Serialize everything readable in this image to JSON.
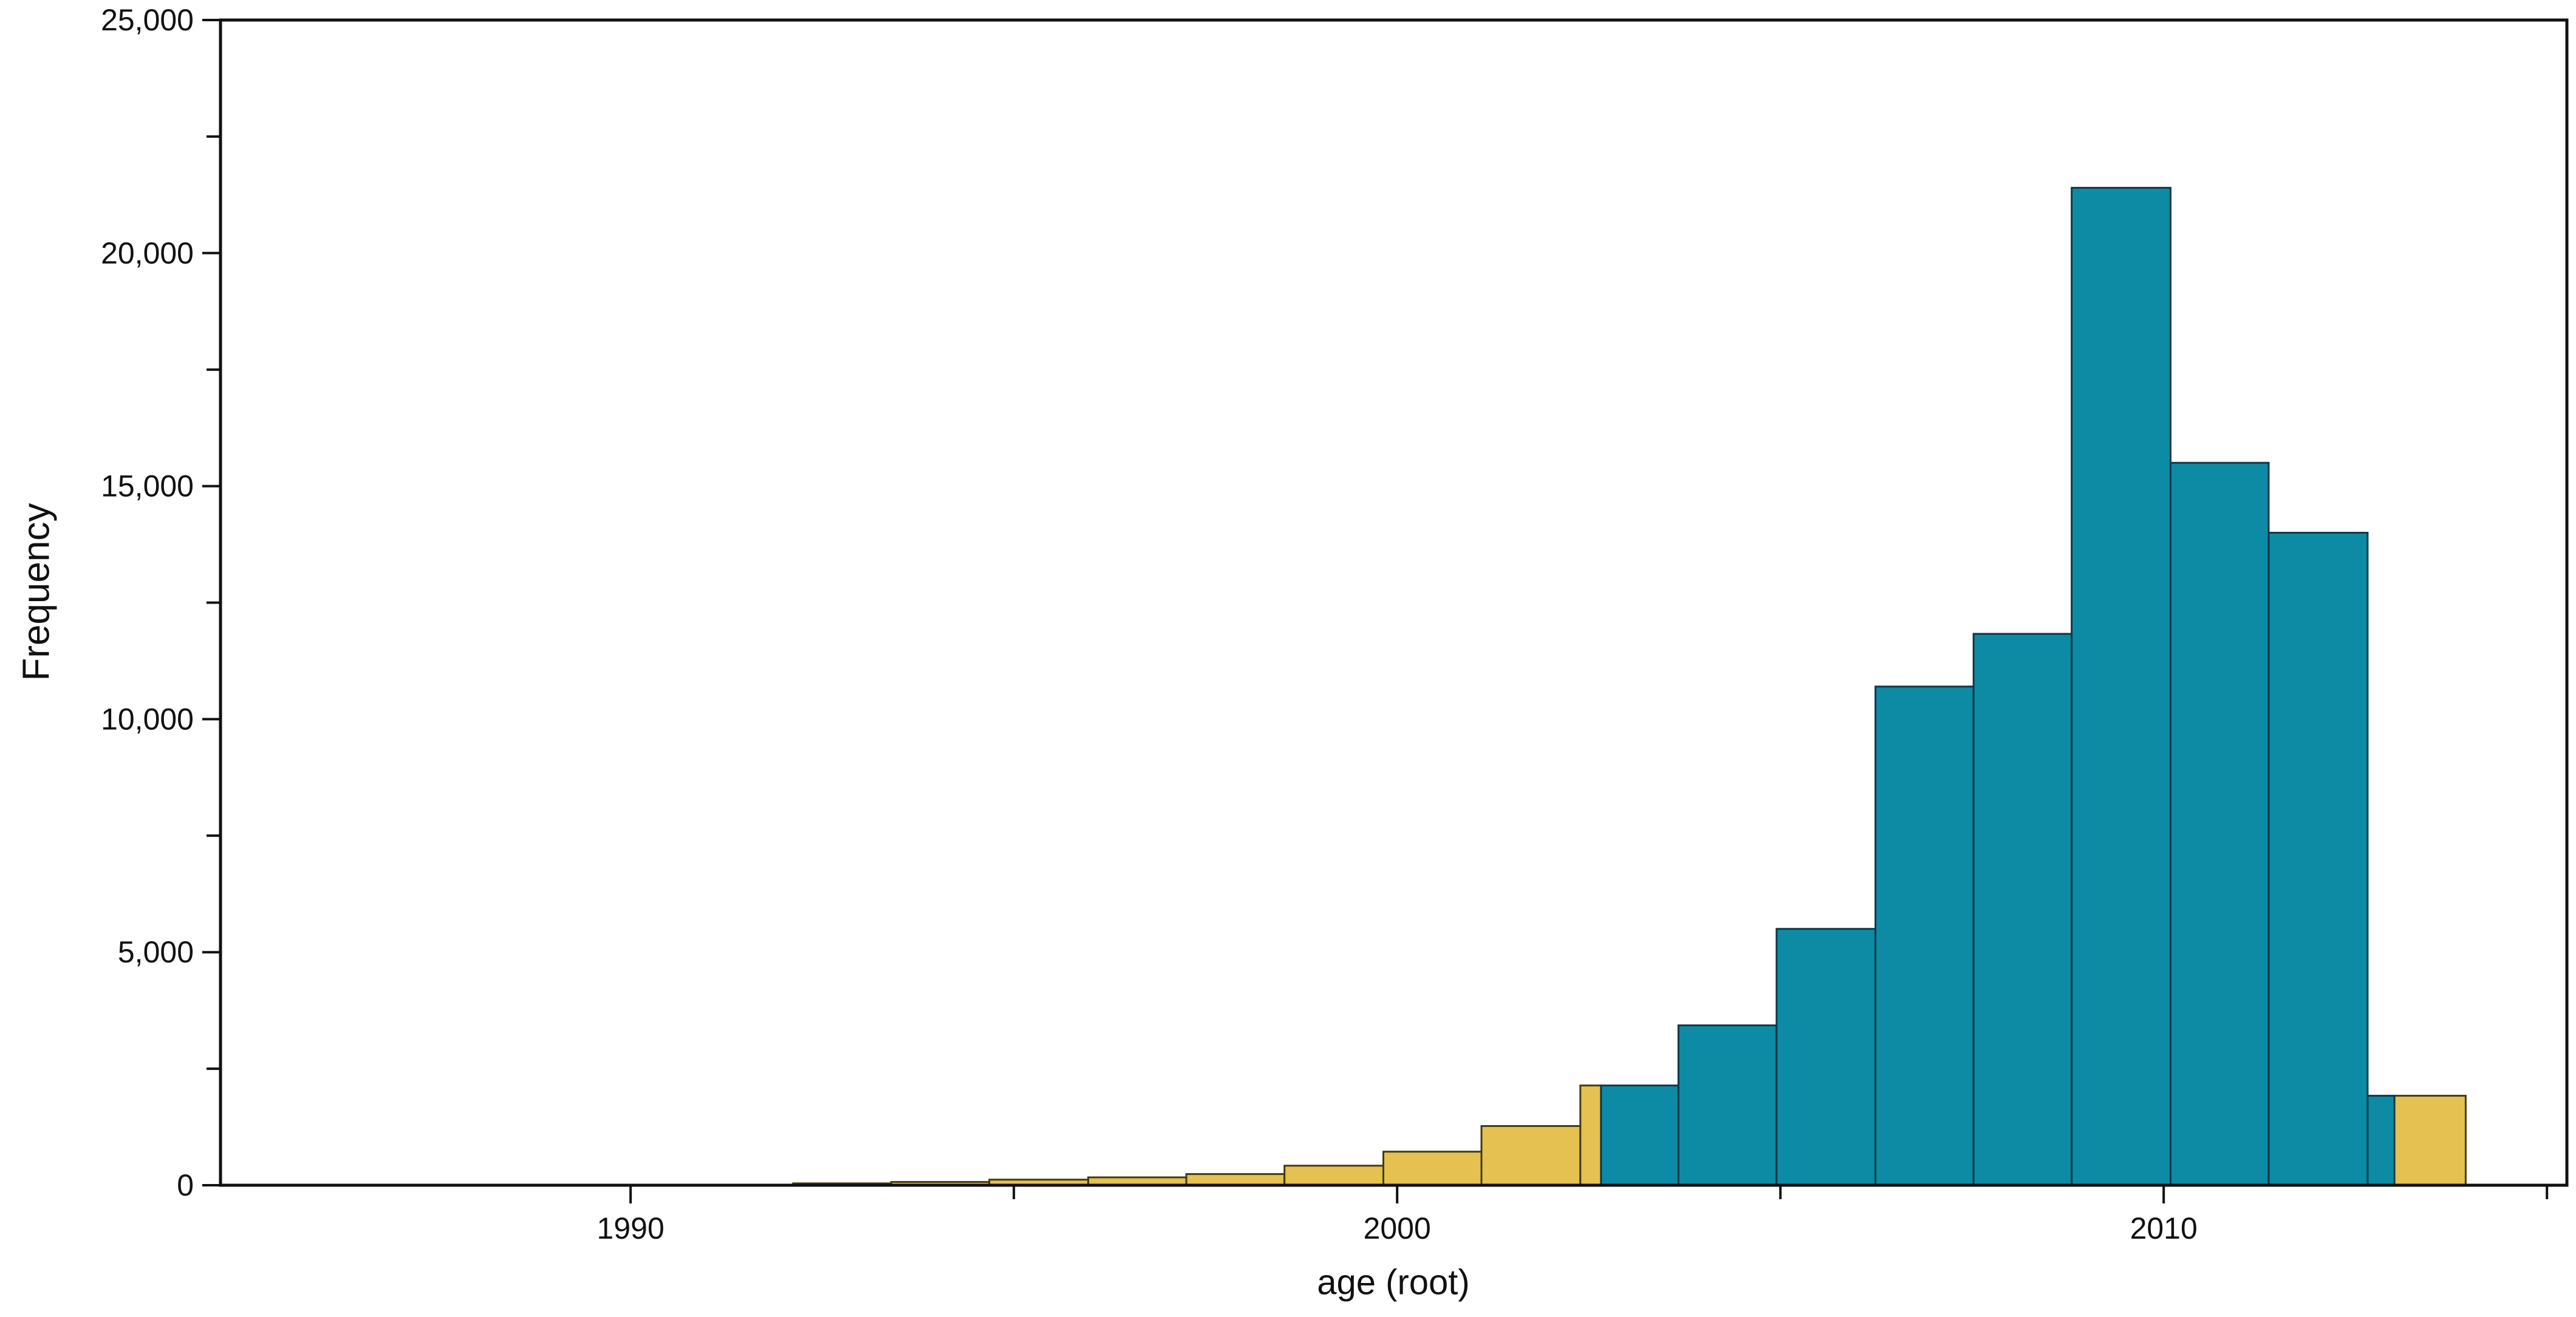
{
  "figure": {
    "background": "#ffffff"
  },
  "chart_data": {
    "type": "histogram",
    "title": "",
    "xlabel": "age (root)",
    "ylabel": "Frequency",
    "grid": false,
    "legend": false,
    "x_axis": {
      "range": [
        1984.65,
        2015.26
      ],
      "major_ticks": [
        1990,
        2000,
        2010
      ],
      "major_tick_labels": [
        "1990",
        "2000",
        "2010"
      ],
      "minor_ticks": [
        1995,
        2005,
        2015
      ]
    },
    "y_axis": {
      "range": [
        0,
        25000
      ],
      "major_ticks": [
        0,
        5000,
        10000,
        15000,
        20000,
        25000
      ],
      "major_tick_labels": [
        "0",
        "5,000",
        "10,000",
        "15,000",
        "20,000",
        "25,000"
      ],
      "minor_ticks": [
        2500,
        7500,
        12500,
        17500,
        22500
      ]
    },
    "bin_edges": [
      1992.12,
      1993.4,
      1994.68,
      1995.97,
      1997.25,
      1998.53,
      1999.82,
      2001.1,
      2002.39,
      2003.67,
      2004.95,
      2006.24,
      2007.52,
      2008.8,
      2010.09,
      2011.37,
      2012.66,
      2013.94
    ],
    "counts": [
      40,
      70,
      120,
      170,
      240,
      420,
      720,
      1270,
      2140,
      3430,
      5500,
      10700,
      11830,
      21400,
      15500,
      14000,
      1920
    ],
    "highlight_range": [
      2002.66,
      2013.01
    ],
    "colors": {
      "bar_fill": "#e4c150",
      "bar_border": "#453a0b",
      "highlight_fill": "#0d8ba5",
      "highlight_border": "#0d3748",
      "axis": "#111111",
      "background": "#ffffff"
    }
  }
}
